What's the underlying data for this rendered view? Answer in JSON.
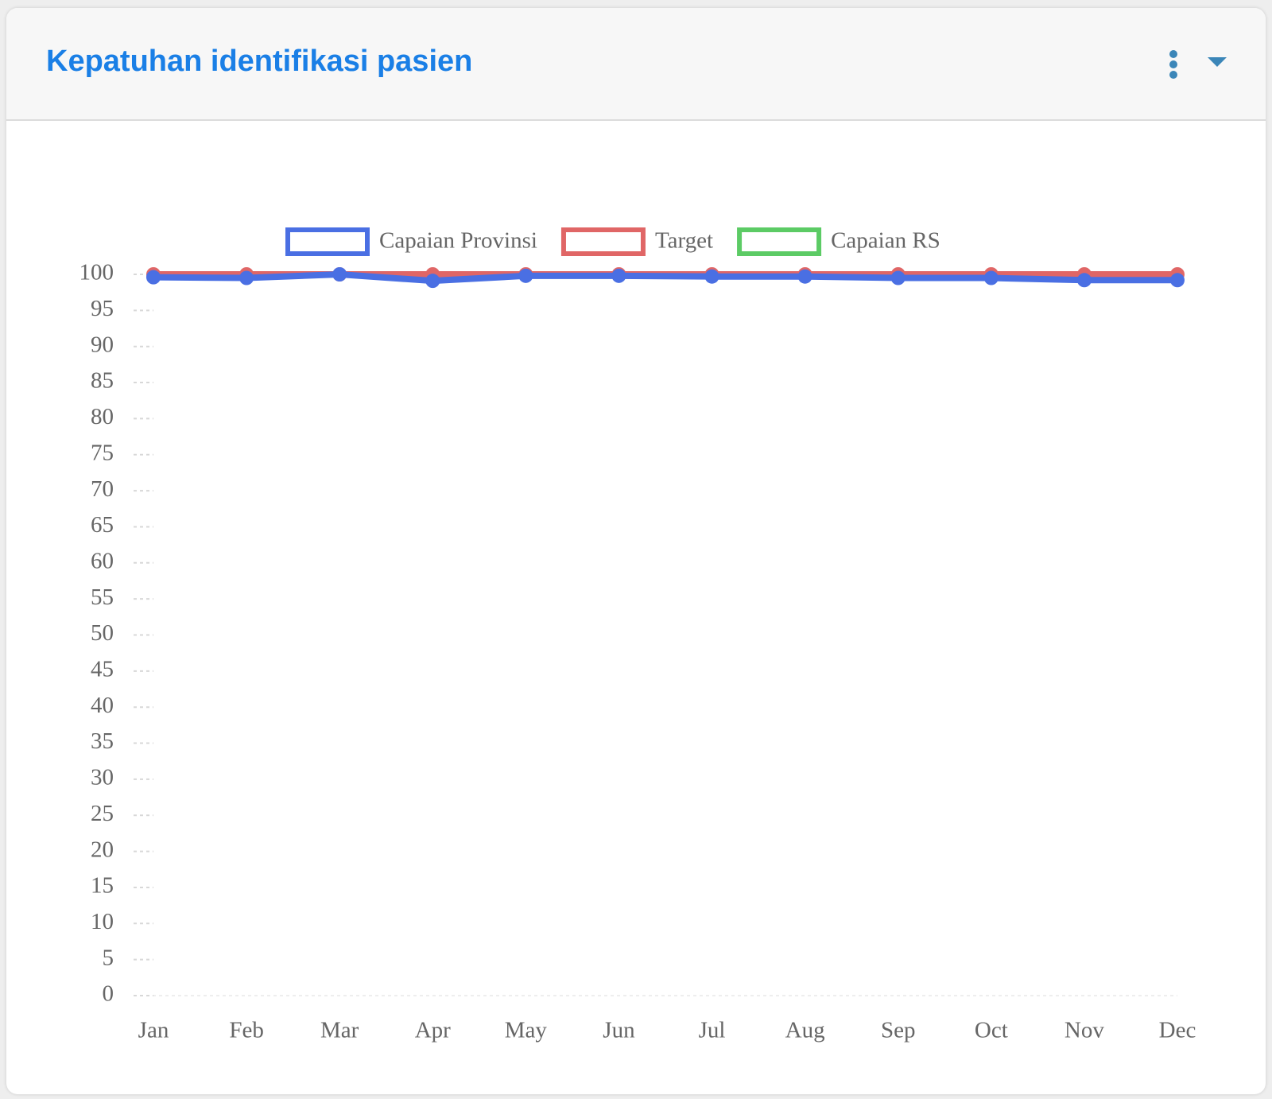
{
  "chart_data": {
    "type": "line",
    "title": "Kepatuhan identifikasi pasien",
    "categories": [
      "Jan",
      "Feb",
      "Mar",
      "Apr",
      "May",
      "Jun",
      "Jul",
      "Aug",
      "Sep",
      "Oct",
      "Nov",
      "Dec"
    ],
    "series": [
      {
        "name": "Capaian Provinsi",
        "color": "#4a6fe3",
        "values": [
          99.6,
          99.5,
          100,
          99.1,
          99.8,
          99.8,
          99.7,
          99.7,
          99.5,
          99.5,
          99.2,
          99.2
        ]
      },
      {
        "name": "Target",
        "color": "#e06666",
        "values": [
          100,
          100,
          100,
          100,
          100,
          100,
          100,
          100,
          100,
          100,
          100,
          100
        ]
      },
      {
        "name": "Capaian RS",
        "color": "#5ccb65",
        "values": [
          null,
          null,
          null,
          null,
          null,
          null,
          null,
          null,
          null,
          null,
          null,
          null
        ]
      }
    ],
    "ylim": [
      0,
      100
    ],
    "yticks": [
      0,
      5,
      10,
      15,
      20,
      25,
      30,
      35,
      40,
      45,
      50,
      55,
      60,
      65,
      70,
      75,
      80,
      85,
      90,
      95,
      100
    ],
    "legend": "top"
  }
}
